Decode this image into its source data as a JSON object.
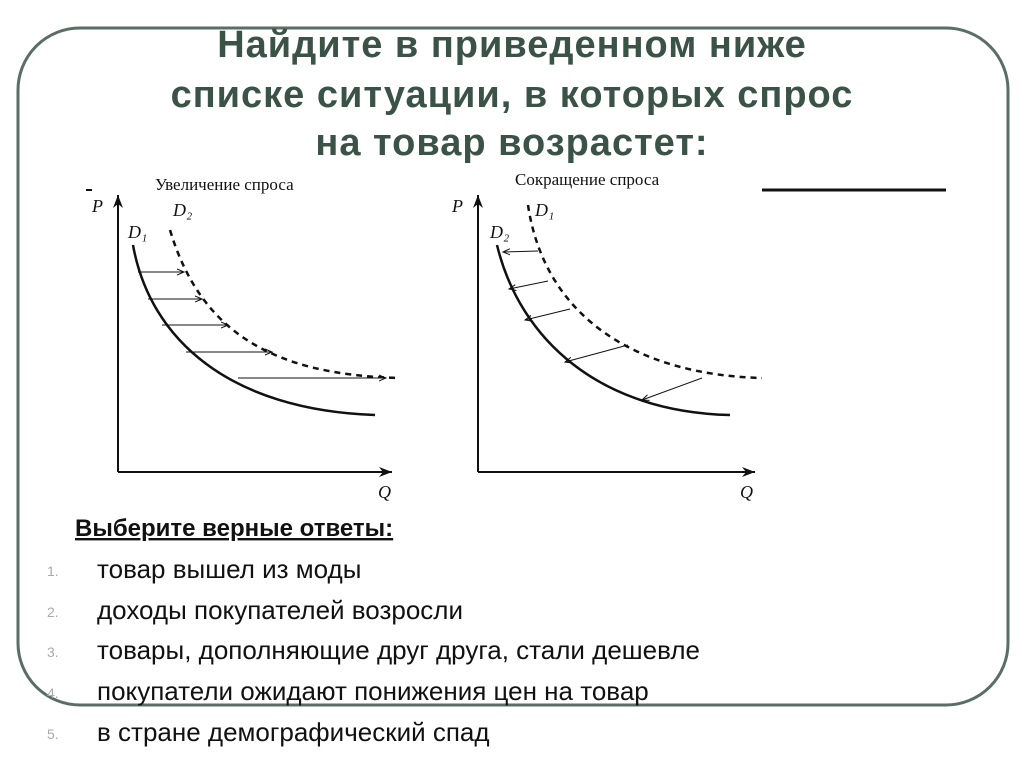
{
  "title": {
    "lines": [
      "Найдите в приведенном ниже",
      "списке ситуации, в которых спрос",
      "на товар возрастет:"
    ]
  },
  "diagrams": [
    {
      "title": "Увеличение спроса",
      "y_axis": "P",
      "x_axis": "Q",
      "curve_labels": [
        "D₁",
        "D₂"
      ]
    },
    {
      "title": "Сокращение спроса",
      "y_axis": "P",
      "x_axis": "Q",
      "curve_labels": [
        "D₂",
        "D₁"
      ]
    }
  ],
  "question": {
    "prompt": "Выберите верные ответы:",
    "options": [
      {
        "number": "1.",
        "text": "товар вышел из моды"
      },
      {
        "number": "2.",
        "text": "доходы покупателей возросли"
      },
      {
        "number": "3.",
        "text": "товары, дополняющие друг друга, стали дешевле"
      },
      {
        "number": "4.",
        "text": "покупатели ожидают понижения цен на товар"
      },
      {
        "number": "5.",
        "text": "в стране демографический спад"
      }
    ]
  }
}
